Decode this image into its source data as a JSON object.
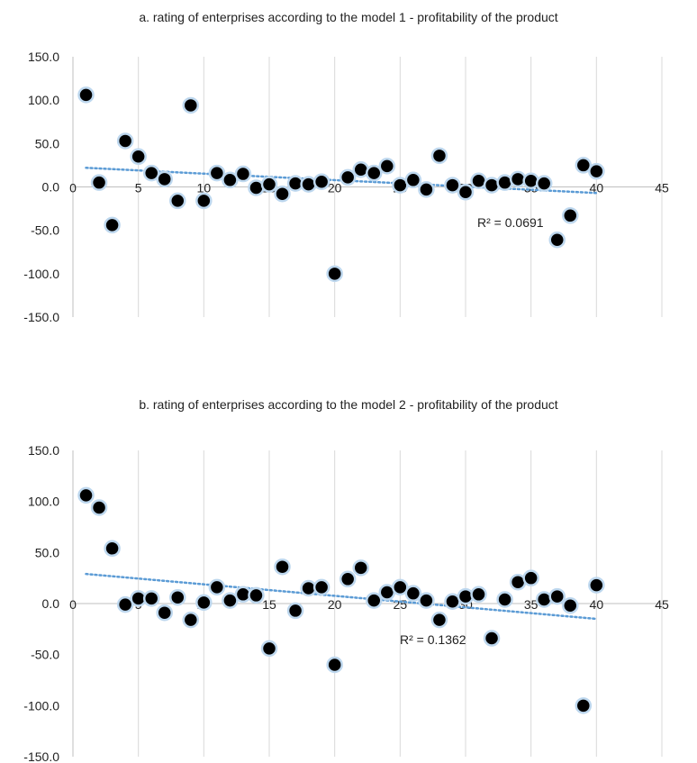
{
  "chart_data": [
    {
      "type": "scatter",
      "title": "a. rating of enterprises according to the model 1 - profitability of the product",
      "xlim": [
        0,
        45
      ],
      "ylim": [
        -150,
        150
      ],
      "x_ticks": [
        "0",
        "5",
        "10",
        "15",
        "20",
        "25",
        "30",
        "35",
        "40",
        "45"
      ],
      "y_ticks": [
        "150.0",
        "100.0",
        "50.0",
        "0.0",
        "-50.0",
        "-100.0",
        "-150.0"
      ],
      "grid": "vertical",
      "trendline": {
        "type": "linear",
        "y_start": 22,
        "y_end": -7,
        "x_start": 1,
        "x_end": 40,
        "r2_label": "R² = 0.0691"
      },
      "colors": {
        "marker_fill": "#000000",
        "marker_edge": "#bdd7ee",
        "trendline": "#5b9bd5"
      },
      "points": [
        [
          1,
          106
        ],
        [
          2,
          5
        ],
        [
          3,
          -44
        ],
        [
          4,
          53
        ],
        [
          5,
          35
        ],
        [
          6,
          16
        ],
        [
          7,
          9
        ],
        [
          8,
          -16
        ],
        [
          9,
          94
        ],
        [
          10,
          -16
        ],
        [
          11,
          16
        ],
        [
          12,
          8
        ],
        [
          13,
          15
        ],
        [
          14,
          -1
        ],
        [
          15,
          3
        ],
        [
          16,
          -8
        ],
        [
          17,
          4
        ],
        [
          18,
          3
        ],
        [
          19,
          6
        ],
        [
          20,
          -100
        ],
        [
          21,
          11
        ],
        [
          22,
          20
        ],
        [
          23,
          16
        ],
        [
          24,
          24
        ],
        [
          25,
          2
        ],
        [
          26,
          8
        ],
        [
          27,
          -3
        ],
        [
          28,
          36
        ],
        [
          29,
          2
        ],
        [
          30,
          -6
        ],
        [
          31,
          7
        ],
        [
          32,
          2
        ],
        [
          33,
          5
        ],
        [
          34,
          9
        ],
        [
          35,
          7
        ],
        [
          36,
          4
        ],
        [
          37,
          -61
        ],
        [
          38,
          -33
        ],
        [
          39,
          25
        ],
        [
          40,
          18
        ]
      ]
    },
    {
      "type": "scatter",
      "title": "b. rating of enterprises according to the model 2 - profitability of the product",
      "xlim": [
        0,
        45
      ],
      "ylim": [
        -150,
        150
      ],
      "x_ticks": [
        "0",
        "5",
        "10",
        "15",
        "20",
        "25",
        "30",
        "35",
        "40",
        "45"
      ],
      "y_ticks": [
        "150.0",
        "100.0",
        "50.0",
        "0.0",
        "-50.0",
        "-100.0",
        "-150.0"
      ],
      "grid": "vertical",
      "trendline": {
        "type": "linear",
        "y_start": 29,
        "y_end": -15,
        "x_start": 1,
        "x_end": 40,
        "r2_label": "R² = 0.1362"
      },
      "colors": {
        "marker_fill": "#000000",
        "marker_edge": "#bdd7ee",
        "trendline": "#5b9bd5"
      },
      "points": [
        [
          1,
          106
        ],
        [
          2,
          94
        ],
        [
          3,
          54
        ],
        [
          4,
          -1
        ],
        [
          5,
          5
        ],
        [
          6,
          5
        ],
        [
          7,
          -9
        ],
        [
          8,
          6
        ],
        [
          9,
          -16
        ],
        [
          10,
          1
        ],
        [
          11,
          16
        ],
        [
          12,
          3
        ],
        [
          13,
          9
        ],
        [
          14,
          8
        ],
        [
          15,
          -44
        ],
        [
          16,
          36
        ],
        [
          17,
          -7
        ],
        [
          18,
          15
        ],
        [
          19,
          16
        ],
        [
          20,
          -60
        ],
        [
          21,
          24
        ],
        [
          22,
          35
        ],
        [
          23,
          3
        ],
        [
          24,
          11
        ],
        [
          25,
          16
        ],
        [
          26,
          10
        ],
        [
          27,
          3
        ],
        [
          28,
          -16
        ],
        [
          29,
          2
        ],
        [
          30,
          7
        ],
        [
          31,
          9
        ],
        [
          32,
          -34
        ],
        [
          33,
          4
        ],
        [
          34,
          21
        ],
        [
          35,
          25
        ],
        [
          36,
          4
        ],
        [
          37,
          7
        ],
        [
          38,
          -2
        ],
        [
          39,
          -100
        ],
        [
          40,
          18
        ]
      ]
    }
  ]
}
